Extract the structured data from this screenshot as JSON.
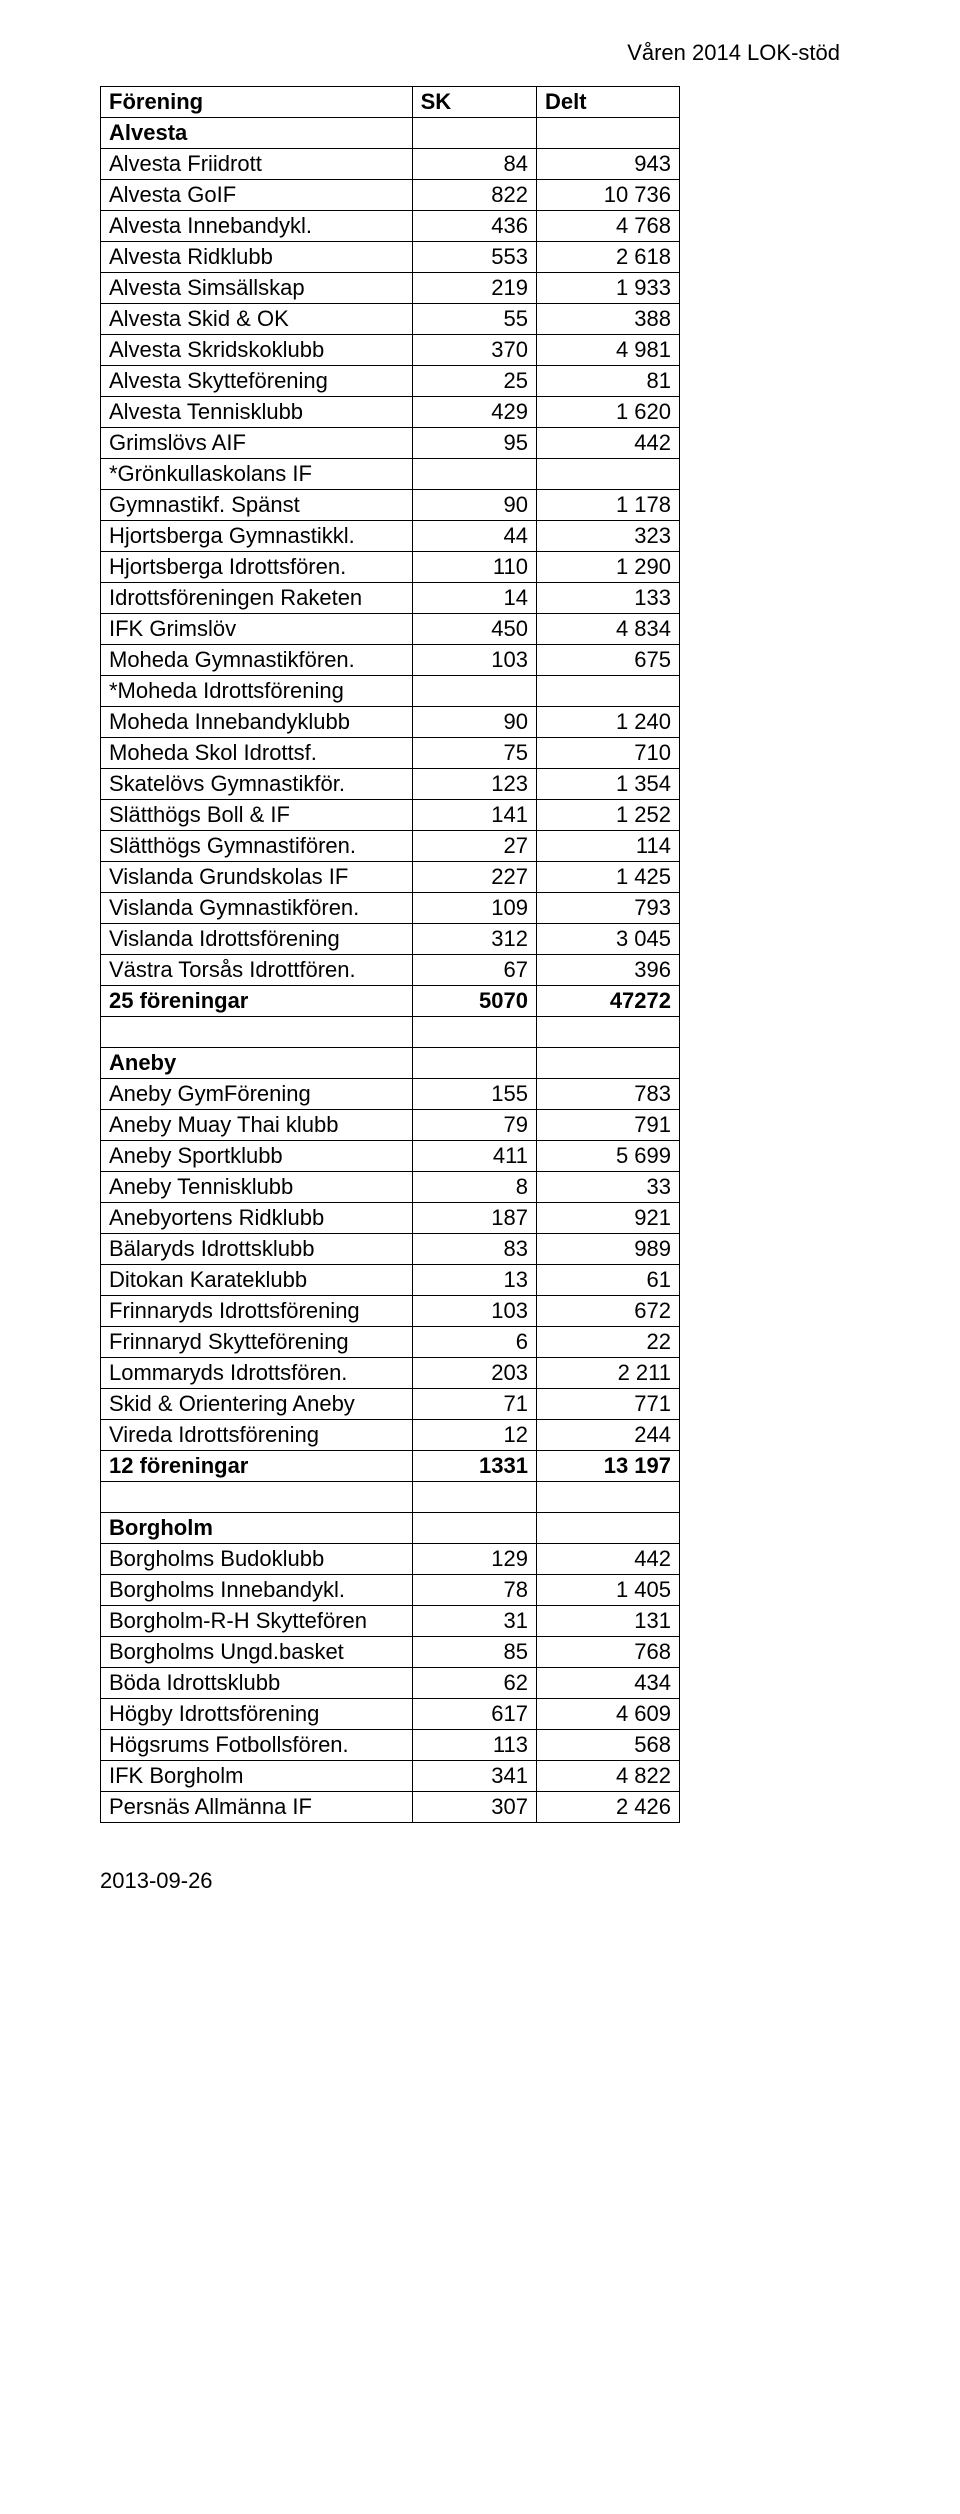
{
  "header_right": "Våren 2014 LOK-stöd",
  "footer": "2013-09-26",
  "table_header": {
    "c1": "Förening",
    "c2": "SK",
    "c3": "Delt"
  },
  "rows": [
    {
      "name": "Alvesta",
      "sk": "",
      "delt": "",
      "bold": true
    },
    {
      "name": "Alvesta Friidrott",
      "sk": "84",
      "delt": "943"
    },
    {
      "name": "Alvesta GoIF",
      "sk": "822",
      "delt": "10 736"
    },
    {
      "name": "Alvesta Innebandykl.",
      "sk": "436",
      "delt": "4 768"
    },
    {
      "name": "Alvesta Ridklubb",
      "sk": "553",
      "delt": "2 618"
    },
    {
      "name": "Alvesta Simsällskap",
      "sk": "219",
      "delt": "1 933"
    },
    {
      "name": "Alvesta Skid & OK",
      "sk": "55",
      "delt": "388"
    },
    {
      "name": "Alvesta Skridskoklubb",
      "sk": "370",
      "delt": "4 981"
    },
    {
      "name": "Alvesta Skytteförening",
      "sk": "25",
      "delt": "81"
    },
    {
      "name": "Alvesta Tennisklubb",
      "sk": "429",
      "delt": "1 620"
    },
    {
      "name": "Grimslövs AIF",
      "sk": "95",
      "delt": "442"
    },
    {
      "name": "*Grönkullaskolans IF",
      "sk": "",
      "delt": ""
    },
    {
      "name": "Gymnastikf. Spänst",
      "sk": "90",
      "delt": "1 178"
    },
    {
      "name": "Hjortsberga Gymnastikkl.",
      "sk": "44",
      "delt": "323"
    },
    {
      "name": "Hjortsberga Idrottsfören.",
      "sk": "110",
      "delt": "1 290"
    },
    {
      "name": "Idrottsföreningen Raketen",
      "sk": "14",
      "delt": "133"
    },
    {
      "name": "IFK Grimslöv",
      "sk": "450",
      "delt": "4 834"
    },
    {
      "name": "Moheda Gymnastikfören.",
      "sk": "103",
      "delt": "675"
    },
    {
      "name": "*Moheda Idrottsförening",
      "sk": "",
      "delt": ""
    },
    {
      "name": "Moheda Innebandyklubb",
      "sk": "90",
      "delt": "1 240"
    },
    {
      "name": "Moheda Skol Idrottsf.",
      "sk": "75",
      "delt": "710"
    },
    {
      "name": "Skatelövs Gymnastikför.",
      "sk": "123",
      "delt": "1 354"
    },
    {
      "name": "Slätthögs Boll & IF",
      "sk": "141",
      "delt": "1 252"
    },
    {
      "name": "Slätthögs Gymnastifören.",
      "sk": "27",
      "delt": "114"
    },
    {
      "name": "Vislanda Grundskolas IF",
      "sk": "227",
      "delt": "1 425"
    },
    {
      "name": "Vislanda Gymnastikfören.",
      "sk": "109",
      "delt": "793"
    },
    {
      "name": "Vislanda Idrottsförening",
      "sk": "312",
      "delt": "3 045"
    },
    {
      "name": "Västra Torsås Idrottfören.",
      "sk": "67",
      "delt": "396"
    },
    {
      "name": "25 föreningar",
      "sk": "5070",
      "delt": "47272",
      "bold": true
    },
    {
      "name": "",
      "sk": "",
      "delt": ""
    },
    {
      "name": "Aneby",
      "sk": "",
      "delt": "",
      "bold": true
    },
    {
      "name": "Aneby GymFörening",
      "sk": "155",
      "delt": "783"
    },
    {
      "name": "Aneby Muay Thai klubb",
      "sk": "79",
      "delt": "791"
    },
    {
      "name": "Aneby Sportklubb",
      "sk": "411",
      "delt": "5 699"
    },
    {
      "name": "Aneby Tennisklubb",
      "sk": "8",
      "delt": "33"
    },
    {
      "name": "Anebyortens Ridklubb",
      "sk": "187",
      "delt": "921"
    },
    {
      "name": "Bälaryds Idrottsklubb",
      "sk": "83",
      "delt": "989"
    },
    {
      "name": "Ditokan Karateklubb",
      "sk": "13",
      "delt": "61"
    },
    {
      "name": "Frinnaryds Idrottsförening",
      "sk": "103",
      "delt": "672"
    },
    {
      "name": "Frinnaryd Skytteförening",
      "sk": "6",
      "delt": "22"
    },
    {
      "name": "Lommaryds Idrottsfören.",
      "sk": "203",
      "delt": "2 211"
    },
    {
      "name": "Skid & Orientering Aneby",
      "sk": "71",
      "delt": "771"
    },
    {
      "name": "Vireda Idrottsförening",
      "sk": "12",
      "delt": "244"
    },
    {
      "name": "12 föreningar",
      "sk": "1331",
      "delt": "13 197",
      "bold": true
    },
    {
      "name": "",
      "sk": "",
      "delt": ""
    },
    {
      "name": "Borgholm",
      "sk": "",
      "delt": "",
      "bold": true
    },
    {
      "name": "Borgholms Budoklubb",
      "sk": "129",
      "delt": "442"
    },
    {
      "name": "Borgholms Innebandykl.",
      "sk": "78",
      "delt": "1 405"
    },
    {
      "name": "Borgholm-R-H Skyttefören",
      "sk": "31",
      "delt": "131"
    },
    {
      "name": "Borgholms Ungd.basket",
      "sk": "85",
      "delt": "768"
    },
    {
      "name": "Böda Idrottsklubb",
      "sk": "62",
      "delt": "434"
    },
    {
      "name": "Högby Idrottsförening",
      "sk": "617",
      "delt": "4 609"
    },
    {
      "name": "Högsrums Fotbollsfören.",
      "sk": "113",
      "delt": "568"
    },
    {
      "name": "IFK Borgholm",
      "sk": "341",
      "delt": "4 822"
    },
    {
      "name": "Persnäs Allmänna IF",
      "sk": "307",
      "delt": "2 426"
    }
  ]
}
